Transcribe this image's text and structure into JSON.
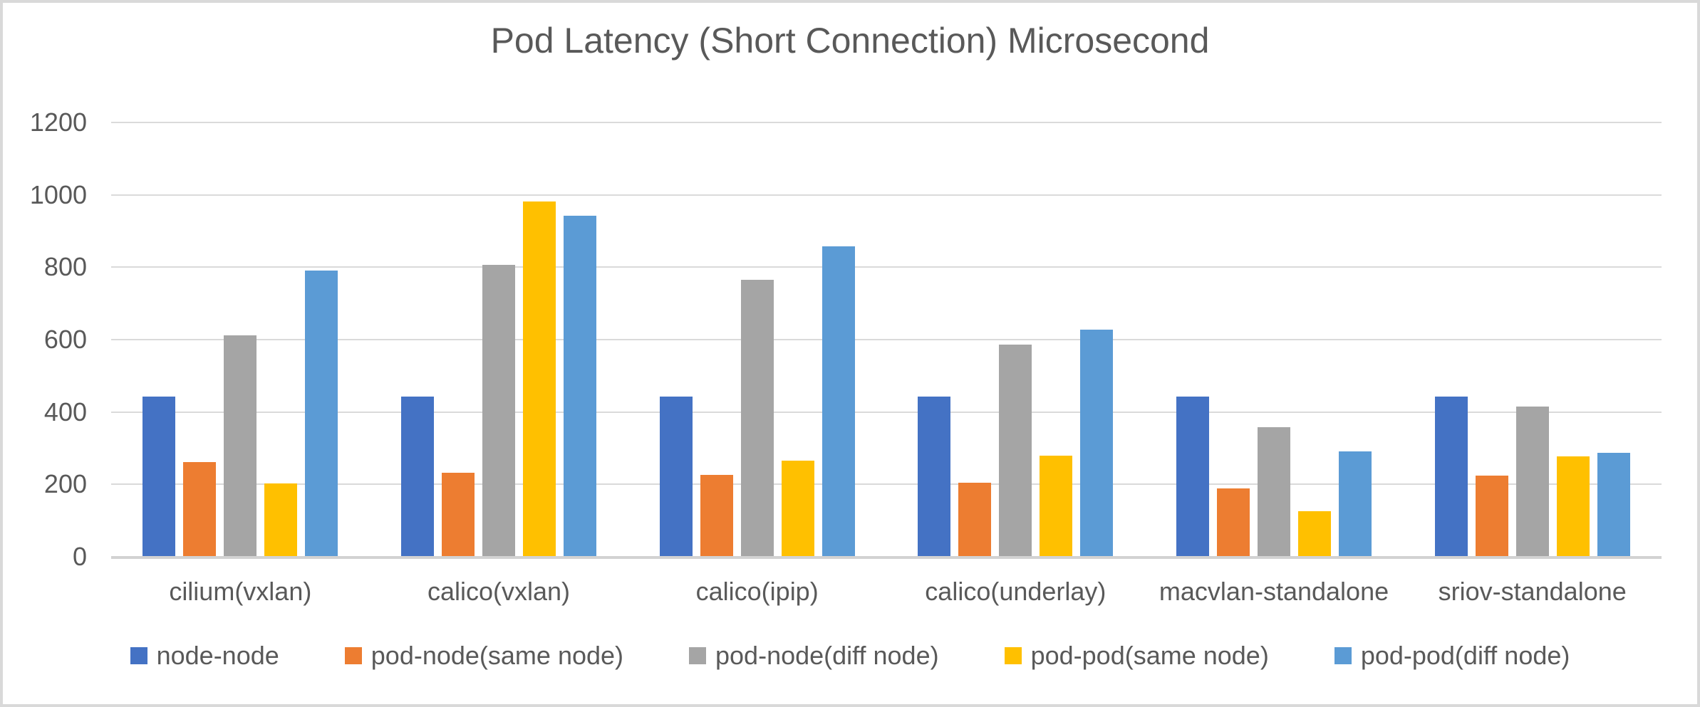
{
  "chart_data": {
    "type": "bar",
    "title": "Pod Latency (Short Connection) Microsecond",
    "xlabel": "",
    "ylabel": "",
    "ylim": [
      0,
      1200
    ],
    "yticks": [
      0,
      200,
      400,
      600,
      800,
      1000,
      1200
    ],
    "grid": true,
    "legend_position": "bottom",
    "background": "#FFFFFF",
    "text_color": "#595959",
    "gridline_color": "#DADADA",
    "axis_line_color": "#D2D2D2",
    "frame_border_color": "#D9D9D9",
    "categories": [
      "cilium(vxlan)",
      "calico(vxlan)",
      "calico(ipip)",
      "calico(underlay)",
      "macvlan-standalone",
      "sriov-standalone"
    ],
    "series": [
      {
        "name": "node-node",
        "color": "#4472C4",
        "values": [
          440,
          440,
          440,
          440,
          440,
          440
        ]
      },
      {
        "name": "pod-node(same node)",
        "color": "#ED7D31",
        "values": [
          260,
          230,
          224,
          203,
          187,
          223
        ]
      },
      {
        "name": "pod-node(diff node)",
        "color": "#A5A5A5",
        "values": [
          610,
          805,
          764,
          585,
          357,
          413
        ]
      },
      {
        "name": "pod-pod(same node)",
        "color": "#FFC000",
        "values": [
          200,
          980,
          263,
          277,
          125,
          275
        ]
      },
      {
        "name": "pod-pod(diff node)",
        "color": "#5B9BD5",
        "values": [
          788,
          940,
          856,
          625,
          289,
          285
        ]
      }
    ]
  }
}
